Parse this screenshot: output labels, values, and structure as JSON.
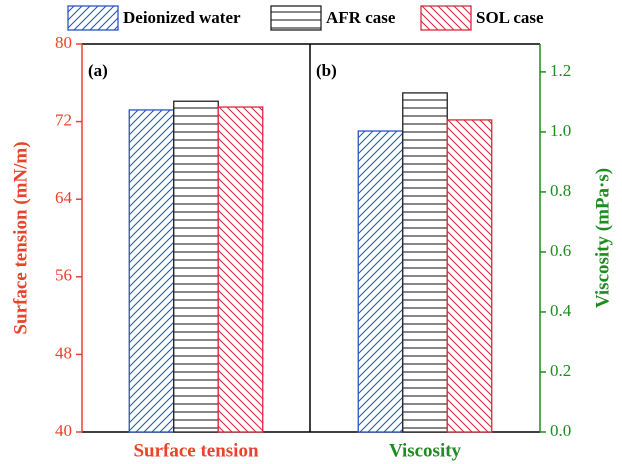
{
  "chart_data": {
    "type": "bar",
    "categories": [
      "Surface tension",
      "Viscosity"
    ],
    "category_axes": [
      "y",
      "y2"
    ],
    "panel_labels": [
      "(a)",
      "(b)"
    ],
    "ylabel": "Surface tension (mN/m)",
    "y2label": "Viscosity (mPa·s)",
    "ylim": [
      40,
      80
    ],
    "yticks": [
      40,
      48,
      56,
      64,
      72,
      80
    ],
    "y2lim": [
      0,
      1.293
    ],
    "y2ticks": [
      {
        "value": 0,
        "label": "0.0"
      },
      0.2,
      0.4,
      0.6,
      0.8,
      {
        "value": 1,
        "label": "1.0"
      },
      1.2
    ],
    "ycolor": "#e8432b",
    "y2color": "#1e8c1e",
    "series": [
      {
        "name": "Deionized water",
        "color": "#2a55c0",
        "hatch": "slash",
        "values": [
          73.2,
          1.003
        ]
      },
      {
        "name": "AFR case",
        "color": "#222222",
        "hatch": "horizontal",
        "values": [
          74.1,
          1.13
        ]
      },
      {
        "name": "SOL case",
        "color": "#d42c3c",
        "hatch": "backslash",
        "values": [
          73.5,
          1.04
        ]
      }
    ]
  }
}
